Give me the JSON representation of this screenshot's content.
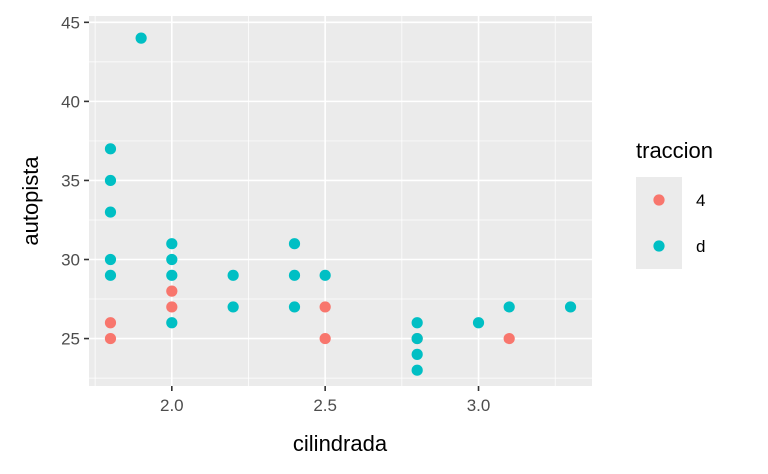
{
  "chart_data": {
    "type": "scatter",
    "xlabel": "cilindrada",
    "ylabel": "autopista",
    "xlim": [
      1.73,
      3.37
    ],
    "ylim": [
      22.0,
      45.4
    ],
    "x_ticks": [
      2.0,
      2.5,
      3.0
    ],
    "x_tick_labels": [
      "2.0",
      "2.5",
      "3.0"
    ],
    "y_ticks": [
      25,
      30,
      35,
      40,
      45
    ],
    "y_tick_labels": [
      "25",
      "30",
      "35",
      "40",
      "45"
    ],
    "grid": true,
    "legend": {
      "title": "traccion",
      "placement": "right",
      "entries": [
        "4",
        "d"
      ]
    },
    "colors": {
      "4": "#F8766D",
      "d": "#00BFC4",
      "panel": "#EBEBEB",
      "grid": "#FFFFFF"
    },
    "series": [
      {
        "name": "4",
        "points": [
          [
            1.8,
            26
          ],
          [
            1.8,
            25
          ],
          [
            2.0,
            28
          ],
          [
            2.0,
            27
          ],
          [
            2.5,
            27
          ],
          [
            2.5,
            25
          ],
          [
            2.8,
            25
          ],
          [
            3.1,
            25
          ]
        ]
      },
      {
        "name": "d",
        "points": [
          [
            1.9,
            44
          ],
          [
            1.8,
            37
          ],
          [
            1.8,
            35
          ],
          [
            1.8,
            33
          ],
          [
            1.8,
            30
          ],
          [
            1.8,
            29
          ],
          [
            2.0,
            31
          ],
          [
            2.0,
            30
          ],
          [
            2.0,
            29
          ],
          [
            2.0,
            26
          ],
          [
            2.2,
            29
          ],
          [
            2.2,
            27
          ],
          [
            2.4,
            31
          ],
          [
            2.4,
            29
          ],
          [
            2.4,
            27
          ],
          [
            2.5,
            29
          ],
          [
            2.8,
            26
          ],
          [
            2.8,
            25
          ],
          [
            2.8,
            24
          ],
          [
            2.8,
            23
          ],
          [
            3.0,
            26
          ],
          [
            3.1,
            27
          ],
          [
            3.3,
            27
          ]
        ]
      }
    ]
  }
}
